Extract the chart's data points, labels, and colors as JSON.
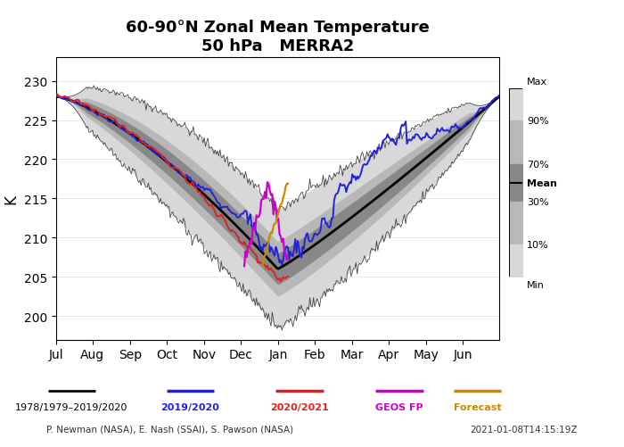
{
  "title": "60-90°N Zonal Mean Temperature\n50 hPa   MERRA2",
  "ylabel": "K",
  "yticks": [
    200,
    205,
    210,
    215,
    220,
    225,
    230
  ],
  "ylim": [
    197,
    233
  ],
  "months": [
    "Jul",
    "Aug",
    "Sep",
    "Oct",
    "Nov",
    "Dec",
    "Jan",
    "Feb",
    "Mar",
    "Apr",
    "May",
    "Jun"
  ],
  "footer_left": "P. Newman (NASA), E. Nash (SSAI), S. Pawson (NASA)",
  "footer_right": "2021-01-08T14:15:19Z",
  "legend_items": [
    {
      "label": "1978/1979–2019/2020",
      "color": "#000000"
    },
    {
      "label": "2019/2020",
      "color": "#2222dd"
    },
    {
      "label": "2020/2021",
      "color": "#dd2222"
    },
    {
      "label": "GEOS FP",
      "color": "#cc00cc"
    },
    {
      "label": "Forecast",
      "color": "#cc8800"
    }
  ],
  "shading_colors": {
    "max_min": "#d8d8d8",
    "p10_p90": "#b8b8b8",
    "p30_p70": "#888888"
  },
  "n_points": 366
}
